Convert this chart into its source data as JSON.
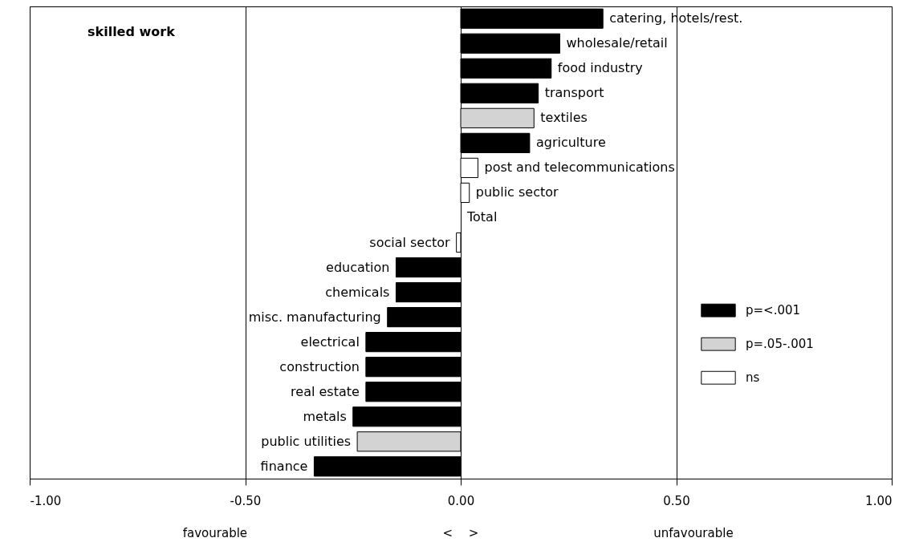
{
  "chart_data": {
    "type": "bar",
    "orientation": "horizontal",
    "title": "skilled work",
    "categories": [
      "catering, hotels/rest.",
      "wholesale/retail",
      "food industry",
      "transport",
      "textiles",
      "agriculture",
      "post and telecommunications",
      "public sector",
      "Total",
      "social sector",
      "education",
      "chemicals",
      "misc. manufacturing",
      "electrical",
      "construction",
      "real estate",
      "metals",
      "public utilities",
      "finance"
    ],
    "series": [
      {
        "name": "p=<.001",
        "color": "#000000",
        "values": [
          0.33,
          0.23,
          0.21,
          0.18,
          null,
          0.16,
          null,
          null,
          null,
          null,
          -0.15,
          -0.15,
          -0.17,
          -0.22,
          -0.22,
          -0.22,
          -0.25,
          null,
          -0.34
        ]
      },
      {
        "name": "p=.05-.001",
        "color": "#d3d3d3",
        "values": [
          null,
          null,
          null,
          null,
          0.17,
          null,
          null,
          null,
          null,
          null,
          null,
          null,
          null,
          null,
          null,
          null,
          null,
          -0.24,
          null
        ]
      },
      {
        "name": "ns",
        "color": "#ffffff",
        "values": [
          null,
          null,
          null,
          null,
          null,
          null,
          0.04,
          0.02,
          null,
          -0.01,
          null,
          null,
          null,
          null,
          null,
          null,
          null,
          null,
          null
        ]
      }
    ],
    "xlim": [
      -1,
      1
    ],
    "xticks": [
      {
        "value": -1,
        "label": "-1.00"
      },
      {
        "value": -0.5,
        "label": "-0.50"
      },
      {
        "value": 0,
        "label": "0.00"
      },
      {
        "value": 0.5,
        "label": "0.50"
      },
      {
        "value": 1,
        "label": "1.00"
      }
    ],
    "grid": "x",
    "legend": "right",
    "annotations": [
      "favourable",
      "<",
      ">",
      "unfavourable"
    ]
  }
}
